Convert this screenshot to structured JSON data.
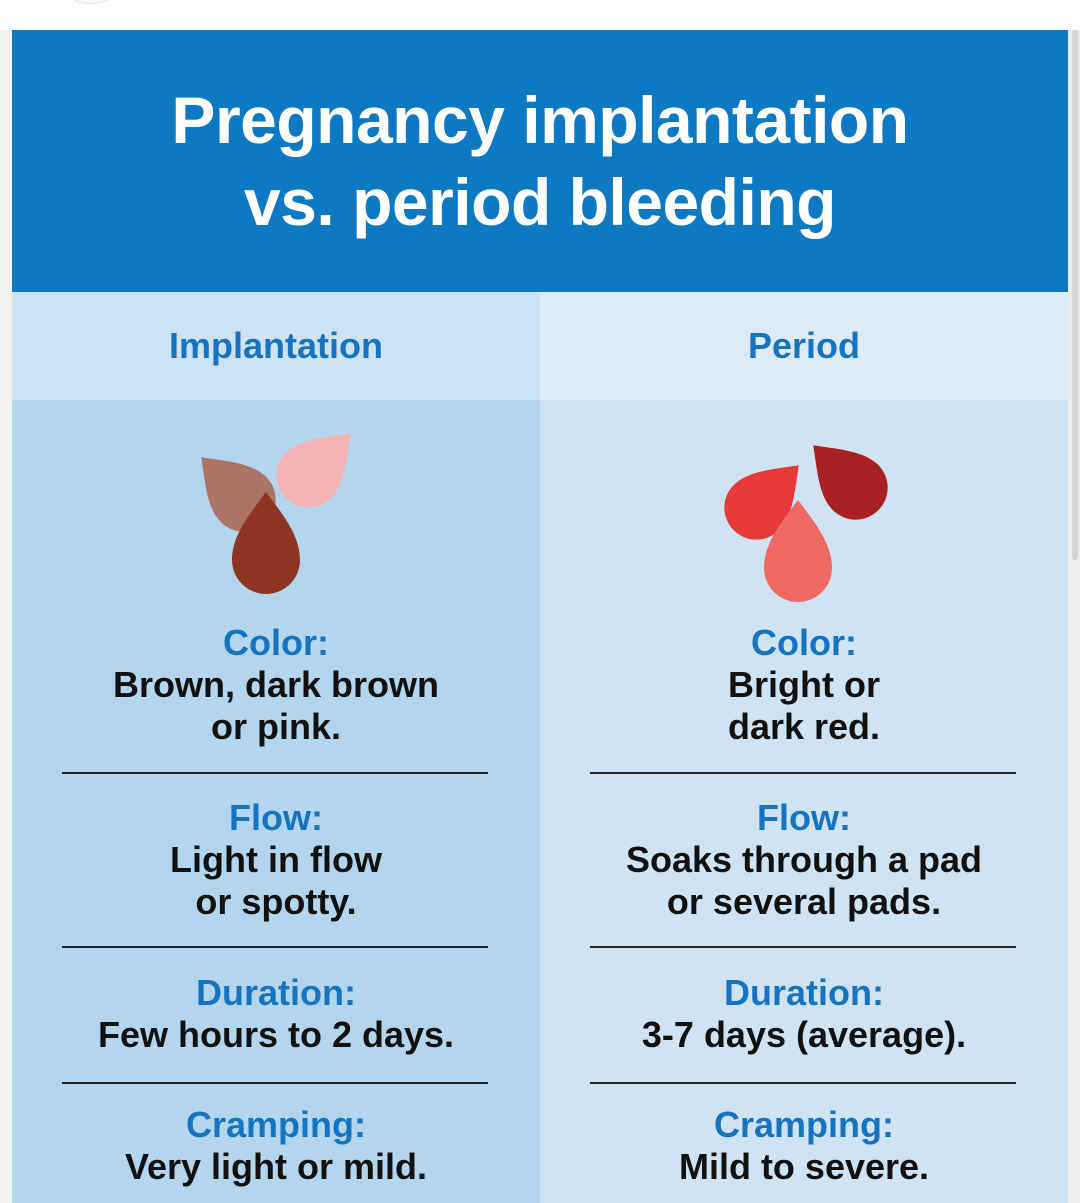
{
  "title_line1": "Pregnancy implantation",
  "title_line2": "vs. period bleeding",
  "columns": [
    {
      "heading": "Implantation",
      "drop_colors": [
        "#ab7566",
        "#f4b4b4",
        "#8e3524"
      ],
      "rows": [
        {
          "label": "Color:",
          "lines": [
            "Brown, dark brown",
            "or pink."
          ]
        },
        {
          "label": "Flow:",
          "lines": [
            "Light in flow",
            "or spotty."
          ]
        },
        {
          "label": "Duration:",
          "lines": [
            "Few hours to 2 days."
          ]
        },
        {
          "label": "Cramping:",
          "lines": [
            "Very light or mild."
          ]
        }
      ]
    },
    {
      "heading": "Period",
      "drop_colors": [
        "#e63b3a",
        "#a82224",
        "#f06a64"
      ],
      "rows": [
        {
          "label": "Color:",
          "lines": [
            "Bright or",
            "dark red."
          ]
        },
        {
          "label": "Flow:",
          "lines": [
            "Soaks through a pad",
            "or several pads."
          ]
        },
        {
          "label": "Duration:",
          "lines": [
            "3-7 days (average)."
          ]
        },
        {
          "label": "Cramping:",
          "lines": [
            "Mild to severe."
          ]
        }
      ]
    }
  ],
  "colors": {
    "header_bg": "#0d79c2",
    "label_blue": "#1673c0",
    "left_col_bg": "#b3d6ee",
    "right_col_bg": "#cfe3f3"
  }
}
